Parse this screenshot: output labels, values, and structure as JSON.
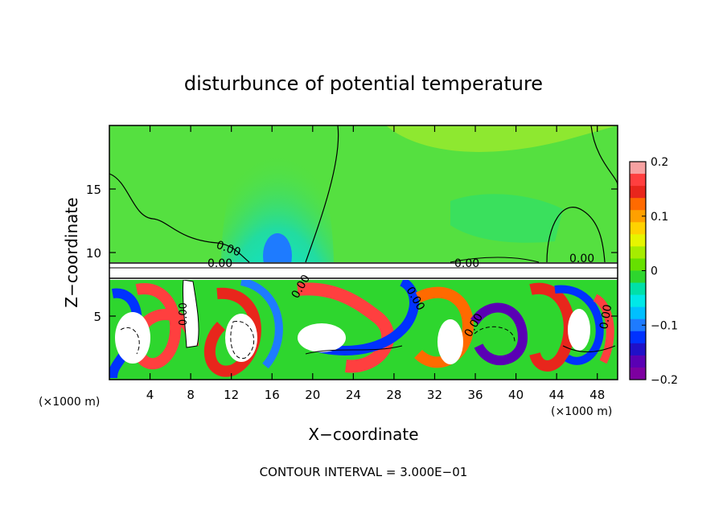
{
  "chart_data": {
    "type": "heatmap",
    "title": "disturbunce of potential temperature",
    "xlabel": "X−coordinate",
    "ylabel": "Z−coordinate",
    "x_unit": "(×1000 m)",
    "footer": "CONTOUR INTERVAL = 3.000E−01",
    "xlim": [
      0,
      50
    ],
    "ylim": [
      0,
      20
    ],
    "x_ticks": [
      4,
      8,
      12,
      16,
      20,
      24,
      28,
      32,
      36,
      40,
      44,
      48
    ],
    "y_ticks": [
      5,
      10,
      15
    ],
    "colorbar": {
      "range": [
        -0.2,
        0.2
      ],
      "ticks": [
        "0.2",
        "0.1",
        "0",
        "−0.1",
        "−0.2"
      ],
      "tick_values": [
        0.2,
        0.1,
        0,
        -0.1,
        -0.2
      ],
      "colors": [
        "#f7a1a1",
        "#ff3f3f",
        "#e8261c",
        "#ff6a00",
        "#ffa000",
        "#ffd200",
        "#e6f500",
        "#a6ec00",
        "#66e000",
        "#2ed62e",
        "#00e0a8",
        "#00e8e8",
        "#00bfff",
        "#1e7bff",
        "#0032ff",
        "#2010c8",
        "#5a00b4",
        "#7d00a0"
      ]
    },
    "contour_labels": [
      "0.00",
      "0.00",
      "0.00",
      "0.00",
      "0.00",
      "0.00",
      "0.00",
      "0.00",
      "0.00"
    ],
    "upper_field_color": "#55e040"
  }
}
